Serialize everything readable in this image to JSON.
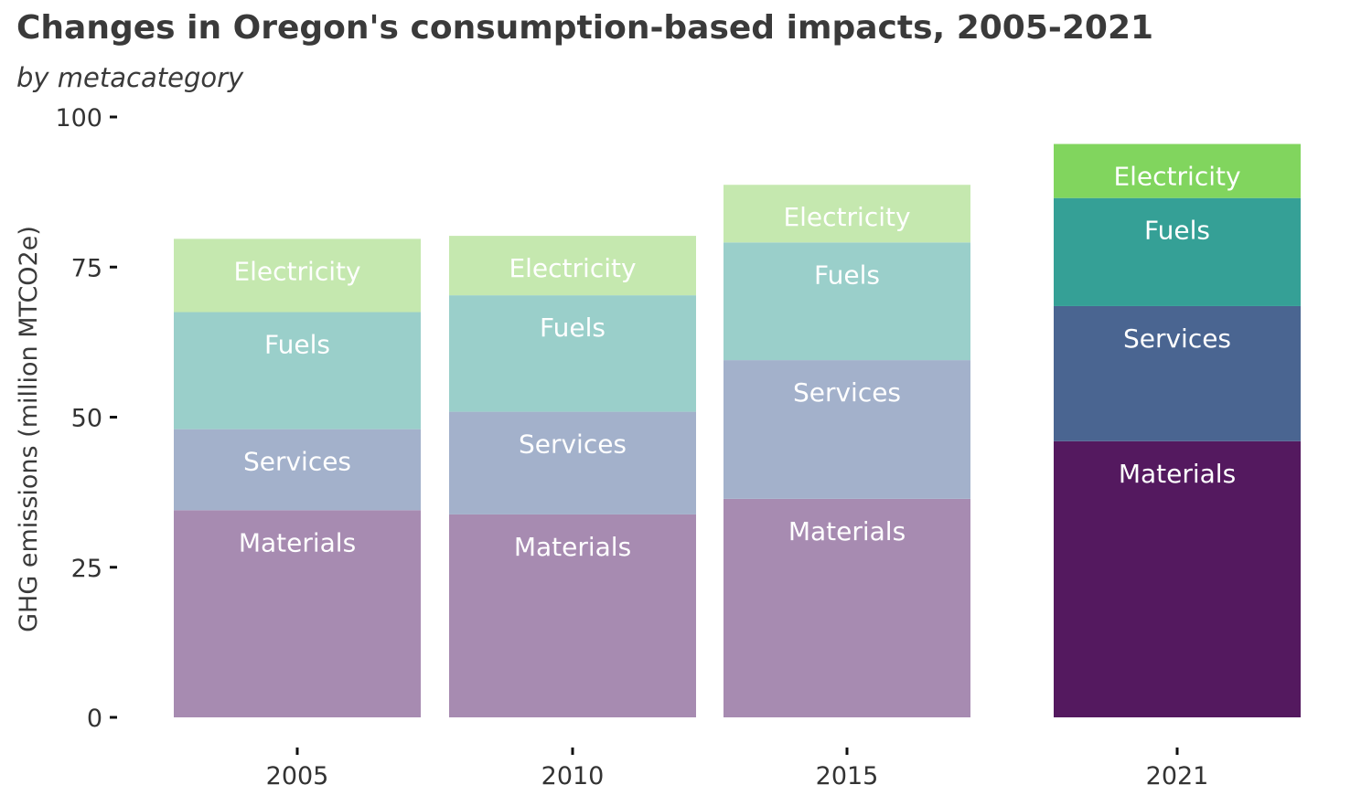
{
  "title": "Changes in Oregon's consumption-based impacts, 2005-2021",
  "subtitle": "by metacategory",
  "chart_data": {
    "type": "bar",
    "stacked": true,
    "title": "Changes in Oregon's consumption-based impacts, 2005-2021",
    "subtitle": "by metacategory",
    "xlabel": "",
    "ylabel": "GHG emissions (million MTCO2e)",
    "ylim": [
      0,
      100
    ],
    "yticks": [
      0,
      25,
      50,
      75,
      100
    ],
    "grid": false,
    "legend": "none (labels inside segments)",
    "categories": [
      "2005",
      "2010",
      "2015",
      "2021"
    ],
    "series": [
      {
        "name": "Materials",
        "values": [
          34.5,
          33.8,
          36.4,
          46.0
        ]
      },
      {
        "name": "Services",
        "values": [
          13.5,
          17.1,
          23.1,
          22.5
        ]
      },
      {
        "name": "Fuels",
        "values": [
          19.5,
          19.4,
          19.6,
          18.0
        ]
      },
      {
        "name": "Electricity",
        "values": [
          12.2,
          9.9,
          9.6,
          9.0
        ]
      }
    ],
    "colors": {
      "faded": {
        "Materials": "#a78bb1",
        "Services": "#a3b1cb",
        "Fuels": "#9acfca",
        "Electricity": "#c5e8af"
      },
      "highlight": {
        "Materials": "#54195f",
        "Services": "#4a6591",
        "Fuels": "#35a096",
        "Electricity": "#81d55e"
      }
    },
    "highlighted_category": "2021"
  }
}
